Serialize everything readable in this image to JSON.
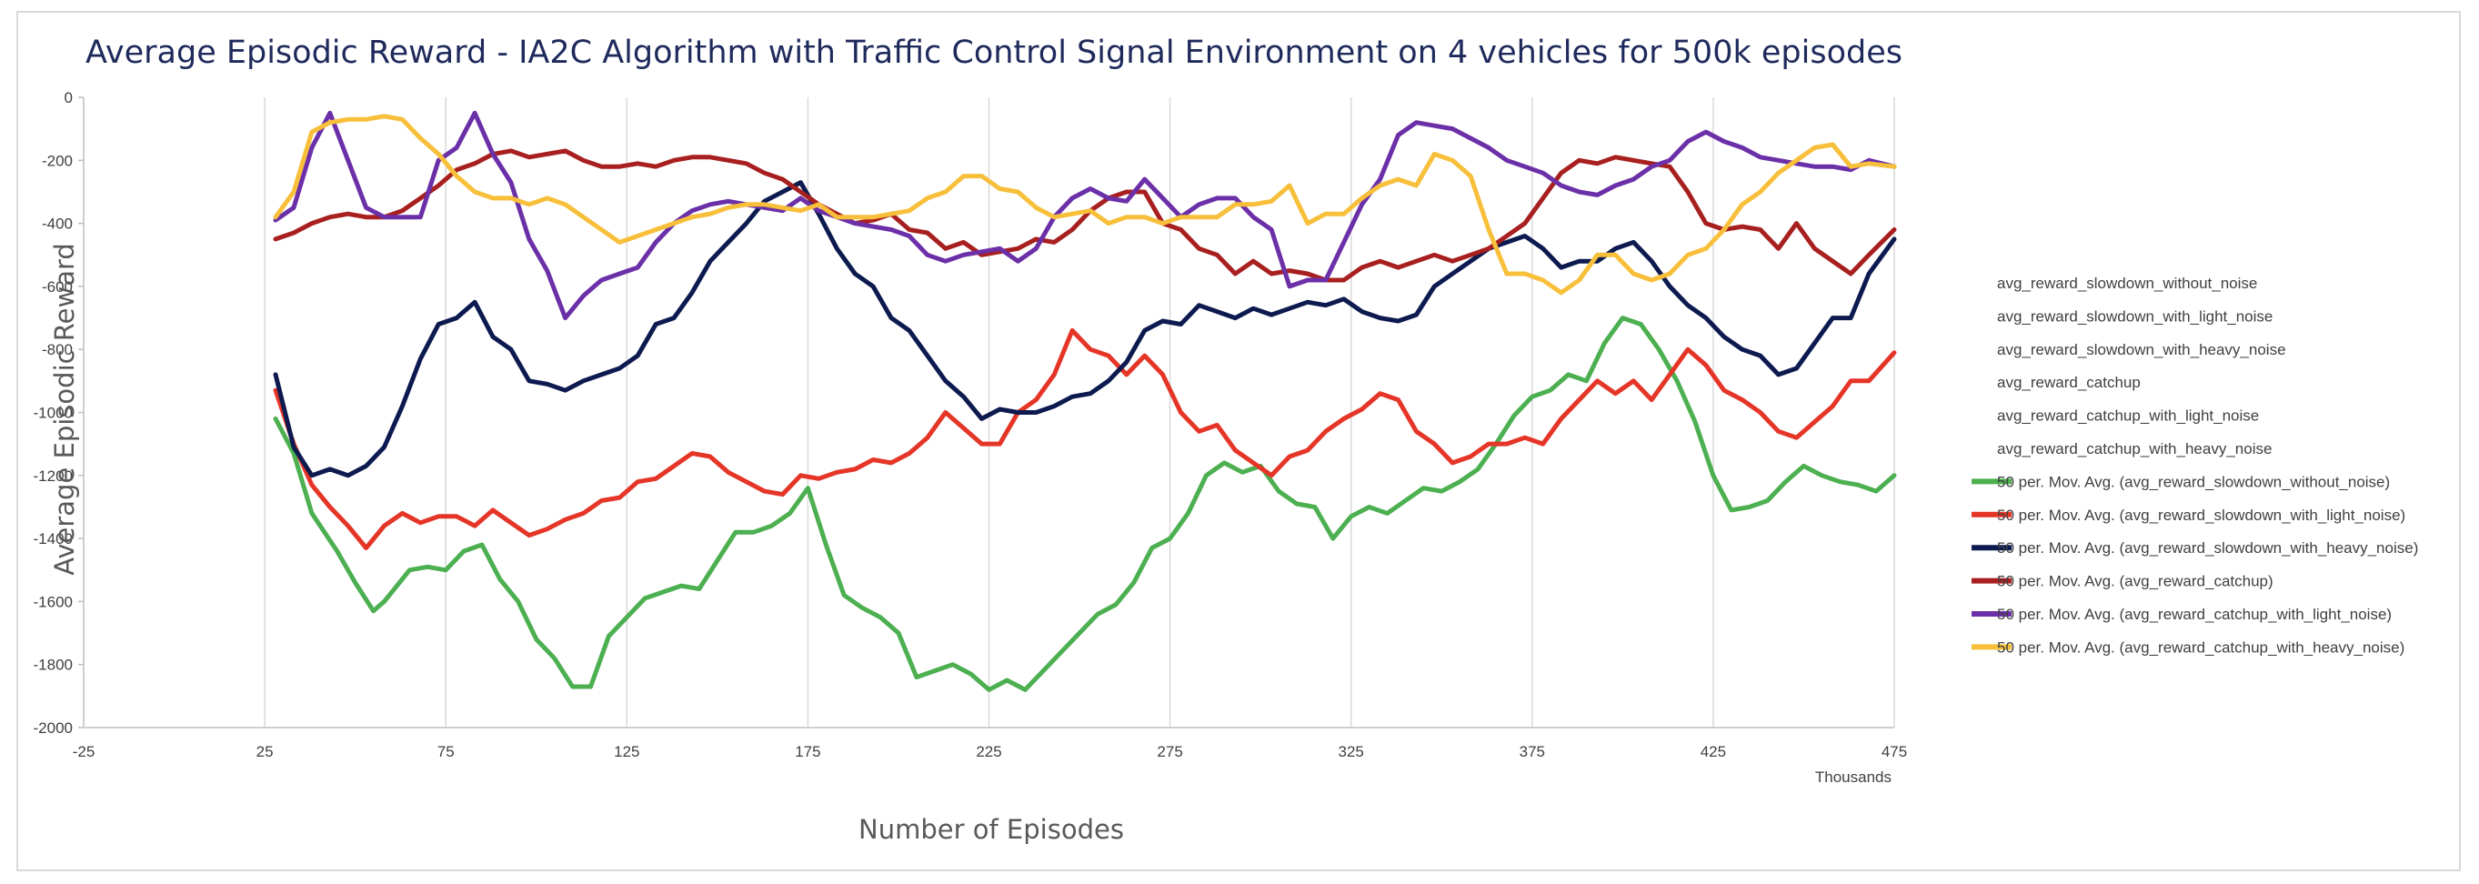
{
  "chart_data": {
    "type": "line",
    "title": "Average Episodic Reward - IA2C Algorithm with Traffic Control Signal Environment on 4 vehicles for 500k episodes",
    "xlabel": "Number of Episodes",
    "ylabel": "Average Episodic Reward",
    "x_unit_label": "Thousands",
    "xlim": [
      -25,
      475
    ],
    "ylim": [
      -2000,
      0
    ],
    "x_ticks": [
      -25,
      25,
      75,
      125,
      175,
      225,
      275,
      325,
      375,
      425,
      475
    ],
    "y_ticks": [
      0,
      -200,
      -400,
      -600,
      -800,
      -1000,
      -1200,
      -1400,
      -1600,
      -1800,
      -2000
    ],
    "grid": "vertical",
    "legend_placement": "right",
    "legend_plain_entries": [
      "avg_reward_slowdown_without_noise",
      "avg_reward_slowdown_with_light_noise",
      "avg_reward_slowdown_with_heavy_noise",
      "avg_reward_catchup",
      "avg_reward_catchup_with_light_noise",
      "avg_reward_catchup_with_heavy_noise"
    ],
    "series": [
      {
        "name": "50 per. Mov. Avg. (avg_reward_slowdown_without_noise)",
        "color": "#4caf50",
        "x": [
          28,
          33,
          38,
          45,
          50,
          55,
          58,
          65,
          70,
          75,
          80,
          85,
          90,
          95,
          100,
          105,
          110,
          115,
          120,
          125,
          130,
          135,
          140,
          145,
          150,
          155,
          160,
          165,
          170,
          175,
          180,
          185,
          190,
          195,
          200,
          205,
          210,
          215,
          220,
          225,
          230,
          235,
          240,
          245,
          250,
          255,
          260,
          265,
          270,
          275,
          280,
          285,
          290,
          295,
          300,
          305,
          310,
          315,
          320,
          325,
          330,
          335,
          340,
          345,
          350,
          355,
          360,
          365,
          370,
          375,
          380,
          385,
          390,
          395,
          400,
          405,
          410,
          415,
          420,
          425,
          430,
          435,
          440,
          445,
          450,
          455,
          460,
          465,
          470,
          475
        ],
        "y": [
          -1020,
          -1130,
          -1320,
          -1440,
          -1540,
          -1630,
          -1600,
          -1500,
          -1490,
          -1500,
          -1440,
          -1420,
          -1530,
          -1600,
          -1720,
          -1780,
          -1870,
          -1870,
          -1710,
          -1650,
          -1590,
          -1570,
          -1550,
          -1560,
          -1470,
          -1380,
          -1380,
          -1360,
          -1320,
          -1240,
          -1420,
          -1580,
          -1620,
          -1650,
          -1700,
          -1840,
          -1820,
          -1800,
          -1830,
          -1880,
          -1850,
          -1880,
          -1820,
          -1760,
          -1700,
          -1640,
          -1610,
          -1540,
          -1430,
          -1400,
          -1320,
          -1200,
          -1160,
          -1190,
          -1170,
          -1250,
          -1290,
          -1300,
          -1400,
          -1330,
          -1300,
          -1320,
          -1280,
          -1240,
          -1250,
          -1220,
          -1180,
          -1100,
          -1010,
          -950,
          -930,
          -880,
          -900,
          -780,
          -700,
          -720,
          -800,
          -900,
          -1030,
          -1200,
          -1310,
          -1300,
          -1280,
          -1220,
          -1170,
          -1200,
          -1220,
          -1230,
          -1250,
          -1200
        ]
      },
      {
        "name": "50 per. Mov. Avg. (avg_reward_slowdown_with_light_noise)",
        "color": "#e53527",
        "x": [
          28,
          33,
          38,
          43,
          48,
          53,
          58,
          63,
          68,
          73,
          78,
          83,
          88,
          93,
          98,
          103,
          108,
          113,
          118,
          123,
          128,
          133,
          138,
          143,
          148,
          153,
          158,
          163,
          168,
          173,
          178,
          183,
          188,
          193,
          198,
          203,
          208,
          213,
          218,
          223,
          228,
          233,
          238,
          243,
          248,
          253,
          258,
          263,
          268,
          273,
          278,
          283,
          288,
          293,
          298,
          303,
          308,
          313,
          318,
          323,
          328,
          333,
          338,
          343,
          348,
          353,
          358,
          363,
          368,
          373,
          378,
          383,
          388,
          393,
          398,
          403,
          408,
          413,
          418,
          423,
          428,
          433,
          438,
          443,
          448,
          453,
          458,
          463,
          468,
          475
        ],
        "y": [
          -930,
          -1100,
          -1230,
          -1300,
          -1360,
          -1430,
          -1360,
          -1320,
          -1350,
          -1330,
          -1330,
          -1360,
          -1310,
          -1350,
          -1390,
          -1370,
          -1340,
          -1320,
          -1280,
          -1270,
          -1220,
          -1210,
          -1170,
          -1130,
          -1140,
          -1190,
          -1220,
          -1250,
          -1260,
          -1200,
          -1210,
          -1190,
          -1180,
          -1150,
          -1160,
          -1130,
          -1080,
          -1000,
          -1050,
          -1100,
          -1100,
          -1000,
          -960,
          -880,
          -740,
          -800,
          -820,
          -880,
          -820,
          -880,
          -1000,
          -1060,
          -1040,
          -1120,
          -1160,
          -1200,
          -1140,
          -1120,
          -1060,
          -1020,
          -990,
          -940,
          -960,
          -1060,
          -1100,
          -1160,
          -1140,
          -1100,
          -1100,
          -1080,
          -1100,
          -1020,
          -960,
          -900,
          -940,
          -900,
          -960,
          -880,
          -800,
          -850,
          -930,
          -960,
          -1000,
          -1060,
          -1080,
          -1030,
          -980,
          -900,
          -900,
          -810
        ]
      },
      {
        "name": "50 per. Mov. Avg. (avg_reward_slowdown_with_heavy_noise)",
        "color": "#0d1a4f",
        "x": [
          28,
          33,
          38,
          43,
          48,
          53,
          58,
          63,
          68,
          73,
          78,
          83,
          88,
          93,
          98,
          103,
          108,
          113,
          118,
          123,
          128,
          133,
          138,
          143,
          148,
          153,
          158,
          163,
          168,
          173,
          178,
          183,
          188,
          193,
          198,
          203,
          208,
          213,
          218,
          223,
          228,
          233,
          238,
          243,
          248,
          253,
          258,
          263,
          268,
          273,
          278,
          283,
          288,
          293,
          298,
          303,
          308,
          313,
          318,
          323,
          328,
          333,
          338,
          343,
          348,
          353,
          358,
          363,
          368,
          373,
          378,
          383,
          388,
          393,
          398,
          403,
          408,
          413,
          418,
          423,
          428,
          433,
          438,
          443,
          448,
          453,
          458,
          463,
          468,
          475
        ],
        "y": [
          -880,
          -1110,
          -1200,
          -1180,
          -1200,
          -1170,
          -1110,
          -980,
          -830,
          -720,
          -700,
          -650,
          -760,
          -800,
          -900,
          -910,
          -930,
          -900,
          -880,
          -860,
          -820,
          -720,
          -700,
          -620,
          -520,
          -460,
          -400,
          -330,
          -300,
          -270,
          -370,
          -480,
          -560,
          -600,
          -700,
          -740,
          -820,
          -900,
          -950,
          -1020,
          -990,
          -1000,
          -1000,
          -980,
          -950,
          -940,
          -900,
          -840,
          -740,
          -710,
          -720,
          -660,
          -680,
          -700,
          -670,
          -690,
          -670,
          -650,
          -660,
          -640,
          -680,
          -700,
          -710,
          -690,
          -600,
          -560,
          -520,
          -480,
          -460,
          -440,
          -480,
          -540,
          -520,
          -520,
          -480,
          -460,
          -520,
          -600,
          -660,
          -700,
          -760,
          -800,
          -820,
          -880,
          -860,
          -780,
          -700,
          -700,
          -560,
          -450
        ]
      },
      {
        "name": "50 per. Mov. Avg. (avg_reward_catchup)",
        "color": "#a81f1f",
        "x": [
          28,
          33,
          38,
          43,
          48,
          53,
          58,
          63,
          68,
          73,
          78,
          83,
          88,
          93,
          98,
          103,
          108,
          113,
          118,
          123,
          128,
          133,
          138,
          143,
          148,
          153,
          158,
          163,
          168,
          173,
          178,
          183,
          188,
          193,
          198,
          203,
          208,
          213,
          218,
          223,
          228,
          233,
          238,
          243,
          248,
          253,
          258,
          263,
          268,
          273,
          278,
          283,
          288,
          293,
          298,
          303,
          308,
          313,
          318,
          323,
          328,
          333,
          338,
          343,
          348,
          353,
          358,
          363,
          368,
          373,
          378,
          383,
          388,
          393,
          398,
          403,
          408,
          413,
          418,
          423,
          428,
          433,
          438,
          443,
          448,
          453,
          458,
          463,
          468,
          475
        ],
        "y": [
          -450,
          -430,
          -400,
          -380,
          -370,
          -380,
          -380,
          -360,
          -320,
          -280,
          -230,
          -210,
          -180,
          -170,
          -190,
          -180,
          -170,
          -200,
          -220,
          -220,
          -210,
          -220,
          -200,
          -190,
          -190,
          -200,
          -210,
          -240,
          -260,
          -300,
          -340,
          -370,
          -400,
          -390,
          -370,
          -420,
          -430,
          -480,
          -460,
          -500,
          -490,
          -480,
          -450,
          -460,
          -420,
          -360,
          -320,
          -300,
          -300,
          -400,
          -420,
          -480,
          -500,
          -560,
          -520,
          -560,
          -550,
          -560,
          -580,
          -580,
          -540,
          -520,
          -540,
          -520,
          -500,
          -520,
          -500,
          -480,
          -440,
          -400,
          -320,
          -240,
          -200,
          -210,
          -190,
          -200,
          -210,
          -220,
          -300,
          -400,
          -420,
          -410,
          -420,
          -480,
          -400,
          -480,
          -520,
          -560,
          -500,
          -420
        ]
      },
      {
        "name": "50 per. Mov. Avg. (avg_reward_catchup_with_light_noise)",
        "color": "#6b2fa8",
        "x": [
          28,
          33,
          38,
          43,
          48,
          53,
          58,
          63,
          68,
          73,
          78,
          83,
          88,
          93,
          98,
          103,
          108,
          113,
          118,
          123,
          128,
          133,
          138,
          143,
          148,
          153,
          158,
          163,
          168,
          173,
          178,
          183,
          188,
          193,
          198,
          203,
          208,
          213,
          218,
          223,
          228,
          233,
          238,
          243,
          248,
          253,
          258,
          263,
          268,
          273,
          278,
          283,
          288,
          293,
          298,
          303,
          308,
          313,
          318,
          323,
          328,
          333,
          338,
          343,
          348,
          353,
          358,
          363,
          368,
          373,
          378,
          383,
          388,
          393,
          398,
          403,
          408,
          413,
          418,
          423,
          428,
          433,
          438,
          443,
          448,
          453,
          458,
          463,
          468,
          475
        ],
        "y": [
          -390,
          -350,
          -160,
          -50,
          -200,
          -350,
          -380,
          -380,
          -380,
          -200,
          -160,
          -50,
          -180,
          -270,
          -450,
          -550,
          -700,
          -630,
          -580,
          -560,
          -540,
          -460,
          -400,
          -360,
          -340,
          -330,
          -340,
          -350,
          -360,
          -320,
          -360,
          -380,
          -400,
          -410,
          -420,
          -440,
          -500,
          -520,
          -500,
          -490,
          -480,
          -520,
          -480,
          -380,
          -320,
          -290,
          -320,
          -330,
          -260,
          -320,
          -380,
          -340,
          -320,
          -320,
          -380,
          -420,
          -600,
          -580,
          -580,
          -460,
          -340,
          -260,
          -120,
          -80,
          -90,
          -100,
          -130,
          -160,
          -200,
          -220,
          -240,
          -280,
          -300,
          -310,
          -280,
          -260,
          -220,
          -200,
          -140,
          -110,
          -140,
          -160,
          -190,
          -200,
          -210,
          -220,
          -220,
          -230,
          -200,
          -220
        ]
      },
      {
        "name": "50 per. Mov. Avg. (avg_reward_catchup_with_heavy_noise)",
        "color": "#f7bf3a",
        "x": [
          28,
          33,
          38,
          43,
          48,
          53,
          58,
          63,
          68,
          73,
          78,
          83,
          88,
          93,
          98,
          103,
          108,
          113,
          118,
          123,
          128,
          133,
          138,
          143,
          148,
          153,
          158,
          163,
          168,
          173,
          178,
          183,
          188,
          193,
          198,
          203,
          208,
          213,
          218,
          223,
          228,
          233,
          238,
          243,
          248,
          253,
          258,
          263,
          268,
          273,
          278,
          283,
          288,
          293,
          298,
          303,
          308,
          313,
          318,
          323,
          328,
          333,
          338,
          343,
          348,
          353,
          358,
          363,
          368,
          373,
          378,
          383,
          388,
          393,
          398,
          403,
          408,
          413,
          418,
          423,
          428,
          433,
          438,
          443,
          448,
          453,
          458,
          463,
          468,
          475
        ],
        "y": [
          -380,
          -300,
          -110,
          -80,
          -70,
          -70,
          -60,
          -70,
          -130,
          -180,
          -250,
          -300,
          -320,
          -320,
          -340,
          -320,
          -340,
          -380,
          -420,
          -460,
          -440,
          -420,
          -400,
          -380,
          -370,
          -350,
          -340,
          -340,
          -350,
          -360,
          -340,
          -380,
          -380,
          -380,
          -370,
          -360,
          -320,
          -300,
          -250,
          -250,
          -290,
          -300,
          -350,
          -380,
          -370,
          -360,
          -400,
          -380,
          -380,
          -400,
          -380,
          -380,
          -380,
          -340,
          -340,
          -330,
          -280,
          -400,
          -370,
          -370,
          -320,
          -280,
          -260,
          -280,
          -180,
          -200,
          -250,
          -420,
          -560,
          -560,
          -580,
          -620,
          -580,
          -500,
          -500,
          -560,
          -580,
          -560,
          -500,
          -480,
          -420,
          -340,
          -300,
          -240,
          -200,
          -160,
          -150,
          -220,
          -210,
          -220
        ]
      }
    ]
  }
}
